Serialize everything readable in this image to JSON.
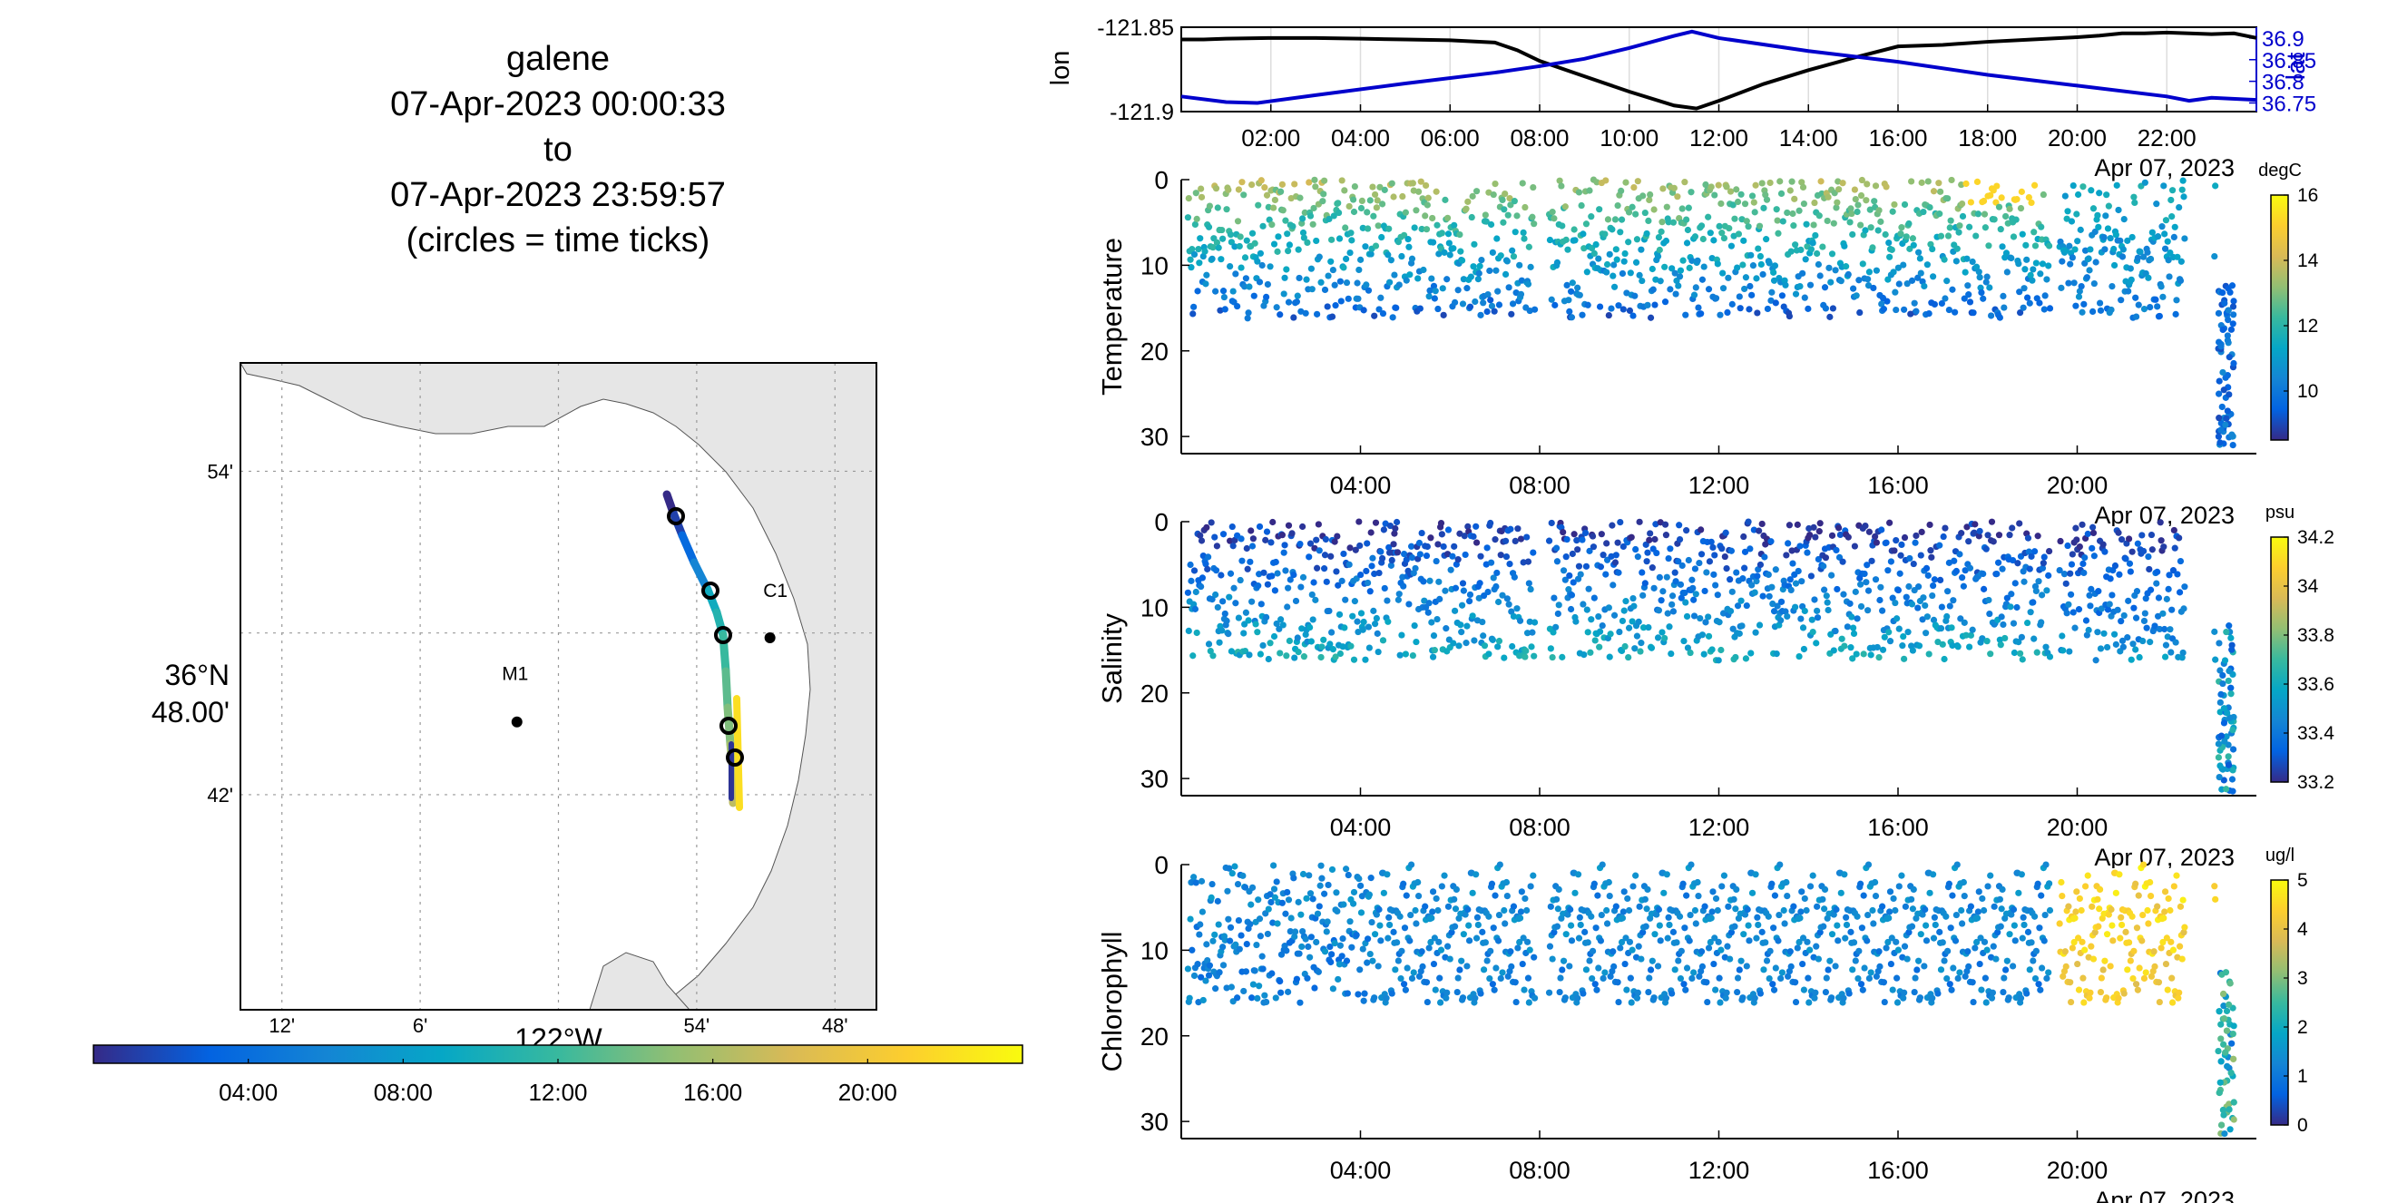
{
  "title": {
    "lines": [
      "galene",
      "07-Apr-2023 00:00:33",
      "to",
      "07-Apr-2023 23:59:57",
      "(circles = time ticks)"
    ]
  },
  "colors": {
    "track": "#000000",
    "lat": "#0000cc",
    "coast_fill": "#e6e6e6",
    "parula": [
      "#352a87",
      "#0363e1",
      "#1485d4",
      "#06a7c6",
      "#38b99e",
      "#92bf73",
      "#d9ba56",
      "#fcce2e",
      "#f9fb0e"
    ]
  },
  "chart_data": [
    {
      "type": "line",
      "name": "lon-lat",
      "ylabel": "lon",
      "y2label": "lat",
      "date_label": "Apr 07, 2023",
      "x_ticks": [
        "02:00",
        "04:00",
        "06:00",
        "08:00",
        "10:00",
        "12:00",
        "14:00",
        "16:00",
        "18:00",
        "20:00",
        "22:00"
      ],
      "x_range_hours": [
        0,
        24
      ],
      "ylim": [
        -121.9,
        -121.845
      ],
      "y_ticks": [
        "-121.85",
        "-121.9"
      ],
      "y2lim": [
        36.73,
        36.925
      ],
      "y2_ticks": [
        "36.9",
        "36.85",
        "36.8",
        "36.75"
      ],
      "grid": true,
      "series": [
        {
          "x_hours": [
            0,
            0.5,
            1,
            2,
            3,
            4,
            5,
            6,
            7,
            7.5,
            8,
            9,
            10,
            11,
            11.5,
            12,
            13,
            14,
            15,
            16,
            17,
            18,
            19,
            20,
            20.5,
            21,
            21.5,
            22,
            22.5,
            23,
            23.5,
            24
          ],
          "y": [
            -121.853,
            -121.853,
            -121.8525,
            -121.852,
            -121.852,
            -121.8525,
            -121.853,
            -121.8535,
            -121.855,
            -121.86,
            -121.867,
            -121.877,
            -121.887,
            -121.896,
            -121.898,
            -121.893,
            -121.882,
            -121.873,
            -121.865,
            -121.8575,
            -121.8565,
            -121.8545,
            -121.853,
            -121.8515,
            -121.8505,
            -121.849,
            -121.849,
            -121.8485,
            -121.849,
            -121.8495,
            -121.849,
            -121.852
          ]
        },
        {
          "x_hours": [
            0,
            1,
            1.7,
            3,
            5,
            7,
            8,
            9,
            10,
            11,
            11.4,
            12,
            14,
            16,
            18,
            20,
            22,
            22.5,
            23,
            24
          ],
          "y": [
            36.765,
            36.752,
            36.75,
            36.768,
            36.795,
            36.82,
            36.835,
            36.852,
            36.877,
            36.905,
            36.915,
            36.9,
            36.87,
            36.845,
            36.815,
            36.79,
            36.765,
            36.755,
            36.762,
            36.757
          ]
        }
      ]
    },
    {
      "type": "scatter",
      "name": "Temperature",
      "ylabel": "Temperature",
      "units": "degC",
      "x_ticks": [
        "04:00",
        "08:00",
        "12:00",
        "16:00",
        "20:00"
      ],
      "date_label": "Apr 07, 2023",
      "ylim": [
        0,
        32
      ],
      "y_ticks": [
        0,
        10,
        20,
        30
      ],
      "clim": [
        8.5,
        16
      ],
      "c_ticks": [
        10,
        12,
        14,
        16
      ],
      "gaps_hours": [
        [
          7.9,
          8.2
        ],
        [
          19.4,
          19.6
        ]
      ],
      "surface": 13.5,
      "deep": 9.5,
      "late_surface": 11.5,
      "late_deep": 10
    },
    {
      "type": "scatter",
      "name": "Salinity",
      "ylabel": "Salinity",
      "units": "psu",
      "x_ticks": [
        "04:00",
        "08:00",
        "12:00",
        "16:00",
        "20:00"
      ],
      "date_label": "Apr 07, 2023",
      "ylim": [
        0,
        32
      ],
      "y_ticks": [
        0,
        10,
        20,
        30
      ],
      "clim": [
        33.2,
        34.2
      ],
      "c_ticks": [
        33.2,
        33.4,
        33.6,
        33.8,
        34,
        34.2
      ],
      "gaps_hours": [
        [
          7.9,
          8.2
        ],
        [
          19.4,
          19.6
        ]
      ],
      "surface": 33.22,
      "deep": 33.6,
      "late_surface": 33.22,
      "late_deep": 33.5
    },
    {
      "type": "scatter",
      "name": "Chlorophyll",
      "ylabel": "Chlorophyll",
      "units": "ug/l",
      "x_ticks": [
        "04:00",
        "08:00",
        "12:00",
        "16:00",
        "20:00"
      ],
      "date_label": "Apr 07, 2023",
      "ylim": [
        0,
        32
      ],
      "y_ticks": [
        0,
        10,
        20,
        30
      ],
      "clim": [
        0,
        5
      ],
      "c_ticks": [
        0,
        1,
        2,
        3,
        4,
        5
      ],
      "gaps_hours": [
        [
          7.9,
          8.2
        ],
        [
          19.4,
          19.6
        ]
      ],
      "surface": 1.3,
      "deep": 1.1,
      "late_surface": 4.5,
      "late_deep": 4.2
    },
    {
      "type": "map",
      "name": "track-map",
      "lon_ticks": [
        "12'",
        "6'",
        "54'",
        "48'"
      ],
      "lon_center_label": "122°W",
      "lat_ticks": [
        "54'",
        "42'"
      ],
      "lat_center_label": [
        "36°N",
        "48.00'"
      ],
      "stations": [
        {
          "name": "M1",
          "lon": -122.03,
          "lat": 36.745
        },
        {
          "name": "C1",
          "lon": -121.847,
          "lat": 36.797
        }
      ],
      "time_colorbar_ticks": [
        "04:00",
        "08:00",
        "12:00",
        "16:00",
        "20:00"
      ],
      "time_colorbar_range_hours": [
        0,
        24
      ]
    }
  ]
}
